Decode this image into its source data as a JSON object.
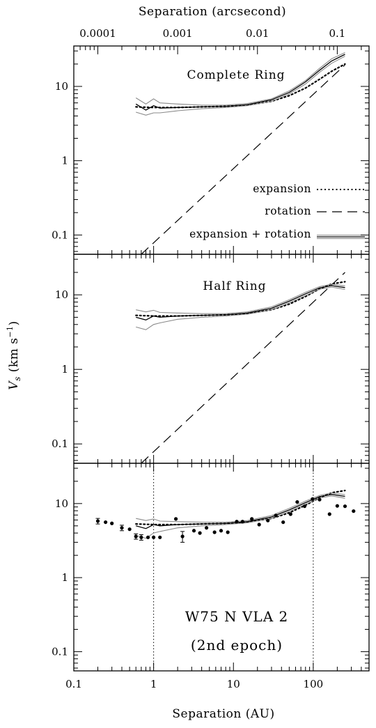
{
  "chart_data": {
    "type": "line",
    "x_axis": {
      "label": "Separation (AU)",
      "scale": "log",
      "range": [
        0.1,
        500
      ],
      "tick_labels": [
        "0.1",
        "1",
        "10",
        "100"
      ]
    },
    "top_axis": {
      "label": "Separation (arcsecond)",
      "scale": "log",
      "tick_labels": [
        "0.0001",
        "0.001",
        "0.01",
        "0.1"
      ]
    },
    "y_axis": {
      "label_main": "V",
      "label_sub": "s",
      "label_units": "(km s",
      "label_exp": "−1",
      "label_close": ")",
      "scale": "log",
      "range": [
        0.055,
        35
      ],
      "tick_labels": [
        "0.1",
        "1",
        "10"
      ]
    },
    "legend": {
      "placement": "bottom-right of top panel",
      "entries": [
        "expansion",
        "rotation",
        "expansion + rotation"
      ]
    },
    "panels": [
      {
        "title": "Complete Ring",
        "series": [
          {
            "name": "expansion",
            "style": "dotted",
            "points": [
              [
                0.6,
                5.3
              ],
              [
                1,
                5.2
              ],
              [
                2,
                5.2
              ],
              [
                4,
                5.3
              ],
              [
                8,
                5.4
              ],
              [
                15,
                5.6
              ],
              [
                30,
                6.3
              ],
              [
                50,
                7.5
              ],
              [
                80,
                9.5
              ],
              [
                120,
                12.5
              ],
              [
                170,
                16
              ],
              [
                250,
                20
              ]
            ]
          },
          {
            "name": "rotation",
            "style": "dashed",
            "points": [
              [
                0.7,
                0.055
              ],
              [
                250,
                19.5
              ]
            ]
          },
          {
            "name": "expansion + rotation",
            "style": "solid",
            "points": [
              [
                0.6,
                5.8
              ],
              [
                0.8,
                4.8
              ],
              [
                1,
                5.5
              ],
              [
                1.2,
                5.1
              ],
              [
                2,
                5.2
              ],
              [
                4,
                5.3
              ],
              [
                8,
                5.4
              ],
              [
                15,
                5.7
              ],
              [
                30,
                6.6
              ],
              [
                50,
                8.3
              ],
              [
                80,
                11.5
              ],
              [
                120,
                16.5
              ],
              [
                170,
                22
              ],
              [
                250,
                27
              ]
            ]
          },
          {
            "name": "envelope upper",
            "style": "gray",
            "points": [
              [
                0.6,
                7.0
              ],
              [
                0.8,
                5.8
              ],
              [
                1,
                6.8
              ],
              [
                1.2,
                6.0
              ],
              [
                2,
                5.8
              ],
              [
                4,
                5.6
              ],
              [
                8,
                5.6
              ],
              [
                15,
                5.9
              ],
              [
                30,
                6.8
              ],
              [
                50,
                8.7
              ],
              [
                80,
                12
              ],
              [
                120,
                17.5
              ],
              [
                170,
                23.5
              ],
              [
                250,
                28.5
              ]
            ]
          },
          {
            "name": "envelope lower",
            "style": "gray",
            "points": [
              [
                0.6,
                4.5
              ],
              [
                0.8,
                4.1
              ],
              [
                1,
                4.4
              ],
              [
                1.2,
                4.4
              ],
              [
                2,
                4.7
              ],
              [
                4,
                5.0
              ],
              [
                8,
                5.2
              ],
              [
                15,
                5.5
              ],
              [
                30,
                6.3
              ],
              [
                50,
                7.9
              ],
              [
                80,
                10.8
              ],
              [
                120,
                15.5
              ],
              [
                170,
                20.5
              ],
              [
                250,
                25.5
              ]
            ]
          }
        ]
      },
      {
        "title": "Half Ring",
        "series": [
          {
            "name": "expansion",
            "style": "dotted",
            "points": [
              [
                0.6,
                5.3
              ],
              [
                1,
                5.2
              ],
              [
                2,
                5.2
              ],
              [
                4,
                5.3
              ],
              [
                8,
                5.4
              ],
              [
                15,
                5.6
              ],
              [
                30,
                6.3
              ],
              [
                50,
                7.5
              ],
              [
                80,
                9.5
              ],
              [
                120,
                12
              ],
              [
                170,
                14
              ],
              [
                250,
                15
              ]
            ]
          },
          {
            "name": "rotation",
            "style": "dashed",
            "points": [
              [
                0.7,
                0.055
              ],
              [
                250,
                20
              ]
            ]
          },
          {
            "name": "expansion + rotation",
            "style": "solid",
            "points": [
              [
                0.6,
                5.0
              ],
              [
                0.8,
                4.6
              ],
              [
                1,
                5.2
              ],
              [
                1.2,
                5.0
              ],
              [
                2,
                5.2
              ],
              [
                4,
                5.3
              ],
              [
                8,
                5.4
              ],
              [
                15,
                5.7
              ],
              [
                30,
                6.6
              ],
              [
                50,
                8.2
              ],
              [
                80,
                10.3
              ],
              [
                120,
                12.4
              ],
              [
                170,
                13.3
              ],
              [
                250,
                12.5
              ]
            ]
          },
          {
            "name": "envelope upper",
            "style": "gray",
            "points": [
              [
                0.6,
                6.3
              ],
              [
                0.8,
                5.9
              ],
              [
                1,
                6.2
              ],
              [
                1.2,
                5.8
              ],
              [
                2,
                5.7
              ],
              [
                4,
                5.6
              ],
              [
                8,
                5.6
              ],
              [
                15,
                5.9
              ],
              [
                30,
                6.9
              ],
              [
                50,
                8.6
              ],
              [
                80,
                10.8
              ],
              [
                120,
                12.9
              ],
              [
                170,
                13.9
              ],
              [
                250,
                13.2
              ]
            ]
          },
          {
            "name": "envelope lower",
            "style": "gray",
            "points": [
              [
                0.6,
                3.7
              ],
              [
                0.8,
                3.4
              ],
              [
                1,
                4.0
              ],
              [
                1.2,
                4.2
              ],
              [
                2,
                4.7
              ],
              [
                4,
                5.0
              ],
              [
                8,
                5.2
              ],
              [
                15,
                5.5
              ],
              [
                30,
                6.3
              ],
              [
                50,
                7.8
              ],
              [
                80,
                9.8
              ],
              [
                120,
                11.9
              ],
              [
                170,
                12.7
              ],
              [
                250,
                11.8
              ]
            ]
          }
        ]
      },
      {
        "title": "",
        "annotation_lines": [
          "W75 N VLA 2",
          "(2nd epoch)"
        ],
        "vertical_dotted_lines_x": [
          1,
          100
        ],
        "series": [
          {
            "name": "expansion",
            "style": "dotted",
            "points": [
              [
                0.6,
                5.3
              ],
              [
                1,
                5.2
              ],
              [
                2,
                5.2
              ],
              [
                4,
                5.3
              ],
              [
                8,
                5.4
              ],
              [
                15,
                5.6
              ],
              [
                30,
                6.3
              ],
              [
                50,
                7.5
              ],
              [
                80,
                9.5
              ],
              [
                120,
                12
              ],
              [
                170,
                14
              ],
              [
                250,
                15
              ]
            ]
          },
          {
            "name": "expansion + rotation",
            "style": "solid",
            "points": [
              [
                0.6,
                5.0
              ],
              [
                0.8,
                4.6
              ],
              [
                1,
                5.2
              ],
              [
                1.2,
                5.0
              ],
              [
                2,
                5.2
              ],
              [
                4,
                5.3
              ],
              [
                8,
                5.4
              ],
              [
                15,
                5.7
              ],
              [
                30,
                6.6
              ],
              [
                50,
                8.2
              ],
              [
                80,
                10.3
              ],
              [
                120,
                12.4
              ],
              [
                170,
                13.3
              ],
              [
                250,
                12.5
              ]
            ]
          },
          {
            "name": "envelope upper",
            "style": "gray",
            "points": [
              [
                0.6,
                6.3
              ],
              [
                0.8,
                5.9
              ],
              [
                1,
                6.2
              ],
              [
                1.2,
                5.8
              ],
              [
                2,
                5.7
              ],
              [
                4,
                5.6
              ],
              [
                8,
                5.6
              ],
              [
                15,
                5.9
              ],
              [
                30,
                6.9
              ],
              [
                50,
                8.6
              ],
              [
                80,
                10.8
              ],
              [
                120,
                12.9
              ],
              [
                170,
                13.9
              ],
              [
                250,
                13.2
              ]
            ]
          },
          {
            "name": "envelope lower",
            "style": "gray",
            "points": [
              [
                0.6,
                3.7
              ],
              [
                0.8,
                3.4
              ],
              [
                1,
                4.0
              ],
              [
                1.2,
                4.2
              ],
              [
                2,
                4.7
              ],
              [
                4,
                5.0
              ],
              [
                8,
                5.2
              ],
              [
                15,
                5.5
              ],
              [
                30,
                6.3
              ],
              [
                50,
                7.8
              ],
              [
                80,
                9.8
              ],
              [
                120,
                11.9
              ],
              [
                170,
                12.7
              ],
              [
                250,
                11.8
              ]
            ]
          }
        ],
        "observed_points": [
          {
            "x": 0.2,
            "y": 5.8,
            "err": 0.5
          },
          {
            "x": 0.25,
            "y": 5.6
          },
          {
            "x": 0.3,
            "y": 5.4
          },
          {
            "x": 0.4,
            "y": 4.7,
            "err": 0.4
          },
          {
            "x": 0.5,
            "y": 4.5
          },
          {
            "x": 0.6,
            "y": 3.6,
            "err": 0.3
          },
          {
            "x": 0.7,
            "y": 3.5,
            "err": 0.3
          },
          {
            "x": 0.85,
            "y": 3.5
          },
          {
            "x": 1.0,
            "y": 3.5
          },
          {
            "x": 1.2,
            "y": 3.5
          },
          {
            "x": 1.9,
            "y": 6.2
          },
          {
            "x": 2.3,
            "y": 3.6,
            "err": 0.6
          },
          {
            "x": 3.2,
            "y": 4.3
          },
          {
            "x": 3.8,
            "y": 4.0
          },
          {
            "x": 4.6,
            "y": 4.7
          },
          {
            "x": 5.8,
            "y": 4.1
          },
          {
            "x": 7.0,
            "y": 4.3
          },
          {
            "x": 8.5,
            "y": 4.1
          },
          {
            "x": 11,
            "y": 5.7
          },
          {
            "x": 13,
            "y": 5.7
          },
          {
            "x": 17,
            "y": 6.2
          },
          {
            "x": 21,
            "y": 5.2
          },
          {
            "x": 27,
            "y": 5.9
          },
          {
            "x": 34,
            "y": 6.9
          },
          {
            "x": 42,
            "y": 5.6
          },
          {
            "x": 52,
            "y": 7.2
          },
          {
            "x": 63,
            "y": 10.5
          },
          {
            "x": 78,
            "y": 9.2
          },
          {
            "x": 98,
            "y": 11.5
          },
          {
            "x": 120,
            "y": 11.3
          },
          {
            "x": 160,
            "y": 7.2
          },
          {
            "x": 200,
            "y": 9.3
          },
          {
            "x": 250,
            "y": 9.2
          },
          {
            "x": 320,
            "y": 7.9
          }
        ]
      }
    ]
  }
}
